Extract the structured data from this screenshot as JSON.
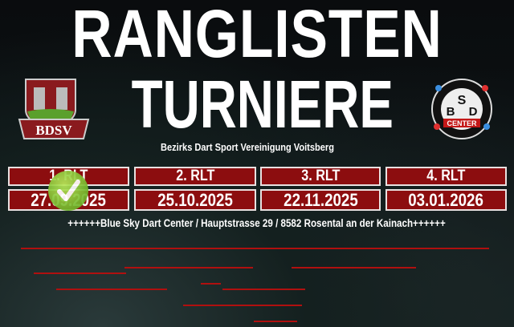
{
  "header": {
    "title_line1": "RANGLISTEN",
    "title_line2": "TURNIERE",
    "subtitle": "Bezirks Dart Sport Vereinigung Voitsberg",
    "logo_left_text": "BDSV",
    "logo_right_text": "CENTER",
    "logo_right_letters": "BSD"
  },
  "tournaments": [
    {
      "label": "1. RLT",
      "date": "27.09.2025",
      "completed": true
    },
    {
      "label": "2. RLT",
      "date": "25.10.2025",
      "completed": false
    },
    {
      "label": "3. RLT",
      "date": "22.11.2025",
      "completed": false
    },
    {
      "label": "4. RLT",
      "date": "03.01.2026",
      "completed": false
    }
  ],
  "address": "++++++Blue Sky Dart Center / Hauptstrasse 29 / 8582 Rosental an der Kainach++++++",
  "colors": {
    "accent_red": "#8c0d0f",
    "check_green": "#7cc238"
  }
}
